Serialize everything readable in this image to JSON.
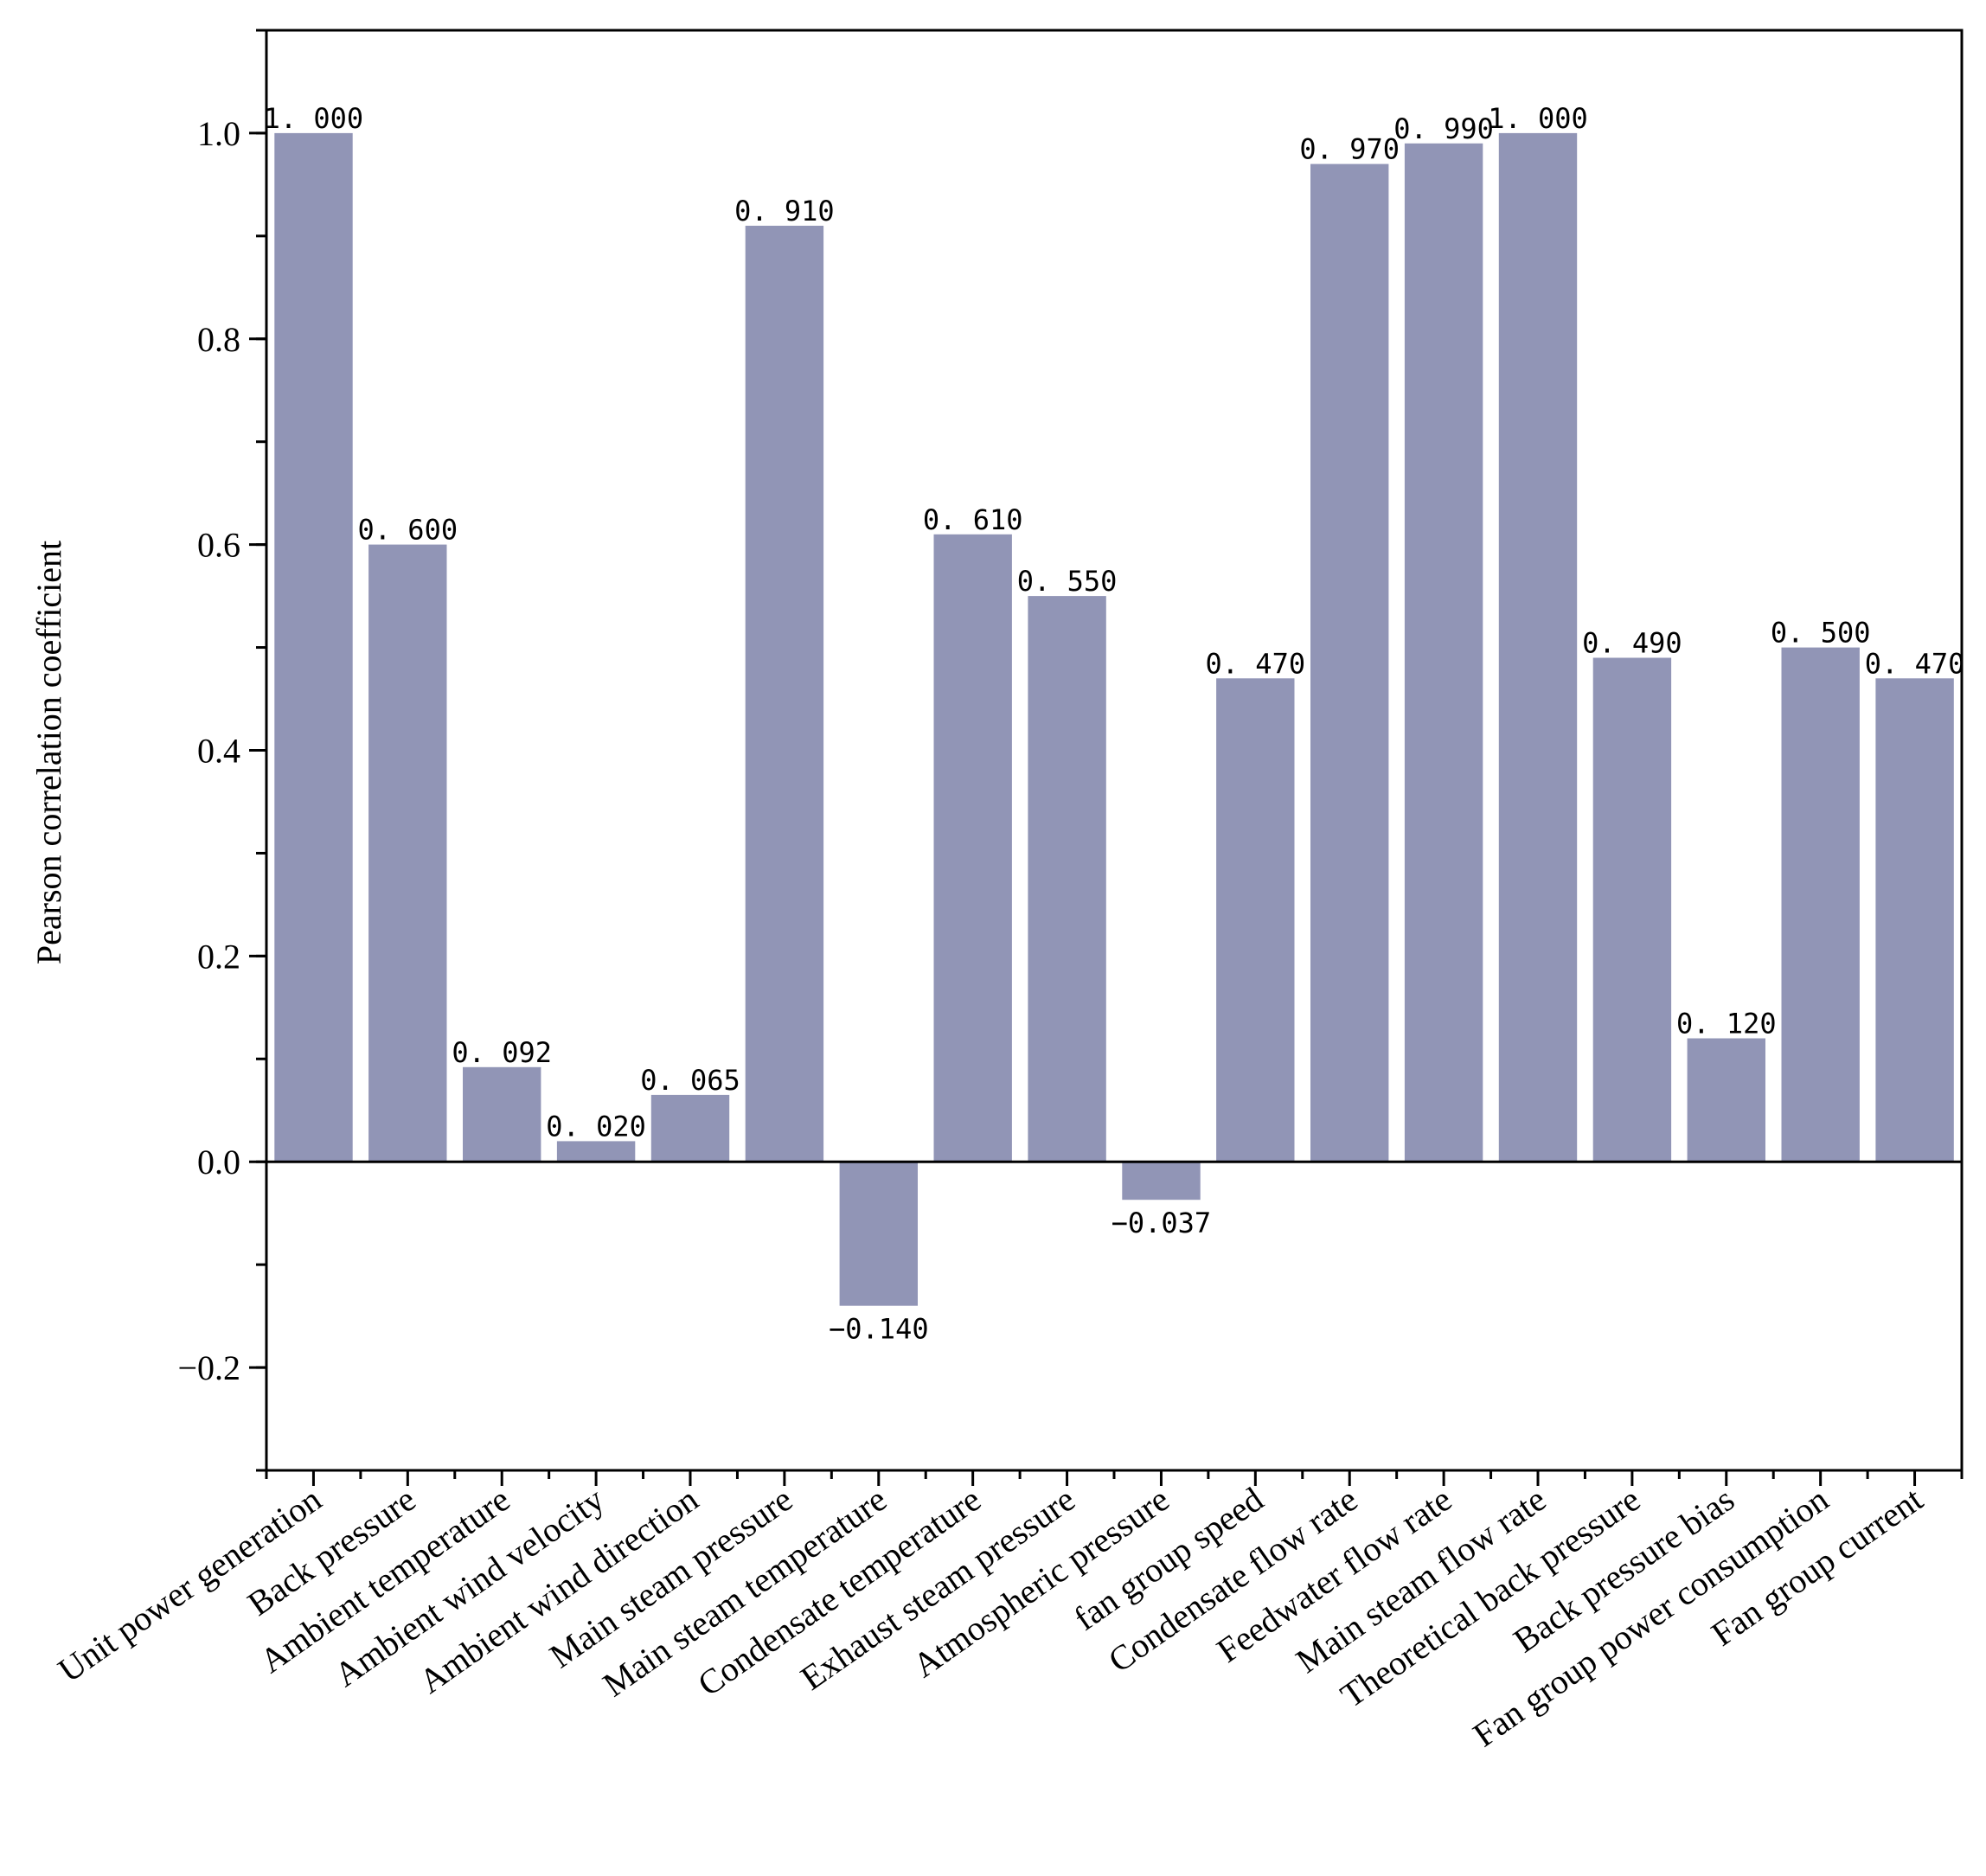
{
  "chart_data": {
    "type": "bar",
    "title": "",
    "xlabel": "",
    "ylabel": "Pearson correlation coefficient",
    "ylim": [
      -0.3,
      1.1
    ],
    "yticks": [
      -0.2,
      0.0,
      0.2,
      0.4,
      0.6,
      0.8,
      1.0
    ],
    "ytick_labels": [
      "−0.2",
      "0.0",
      "0.2",
      "0.4",
      "0.6",
      "0.8",
      "1.0"
    ],
    "bar_color": "#9195b6",
    "categories": [
      "Unit power generation",
      "Back pressure",
      "Ambient temperature",
      "Ambient wind velocity",
      "Ambient wind direction",
      "Main steam pressure",
      "Main steam temperature",
      "Condensate temperature",
      "Exhaust steam pressure",
      "Atmospheric pressure",
      "fan group speed",
      "Condensate flow rate",
      "Feedwater flow rate",
      "Main steam flow rate",
      "Theoretical back pressure",
      "Back pressure bias",
      "Fan group power consumption",
      "Fan group current"
    ],
    "values": [
      1.0,
      0.6,
      0.092,
      0.02,
      0.065,
      0.91,
      -0.14,
      0.61,
      0.55,
      -0.037,
      0.47,
      0.97,
      0.99,
      1.0,
      0.49,
      0.12,
      0.5,
      0.47
    ],
    "data_labels": [
      "1. 000",
      "0. 600",
      "0. 092",
      "0. 020",
      "0. 065",
      "0. 910",
      "−0.140",
      "0. 610",
      "0. 550",
      "−0.037",
      "0. 470",
      "0. 970",
      "0. 990",
      "1. 000",
      "0. 490",
      "0. 120",
      "0. 500",
      "0. 470"
    ]
  }
}
